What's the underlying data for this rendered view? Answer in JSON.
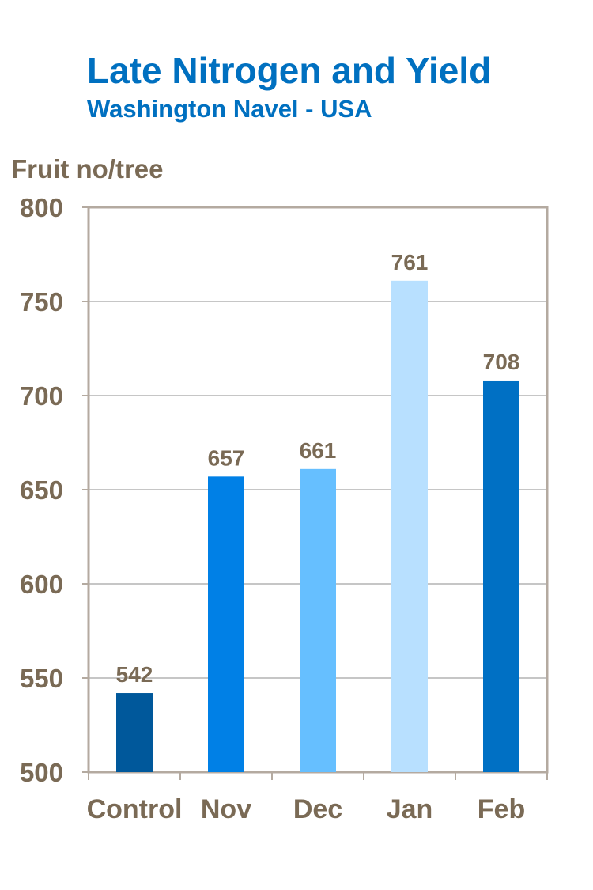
{
  "chart_data": {
    "type": "bar",
    "title": "Late Nitrogen and Yield",
    "subtitle": "Washington Navel - USA",
    "ylabel": "Fruit no/tree",
    "xlabel": "",
    "categories": [
      "Control",
      "Nov",
      "Dec",
      "Jan",
      "Feb"
    ],
    "values": [
      542,
      657,
      661,
      761,
      708
    ],
    "data_labels": [
      "542",
      "657",
      "661",
      "761",
      "708"
    ],
    "bar_colors": [
      "#00589b",
      "#0080e6",
      "#66bfff",
      "#b8e0ff",
      "#0070c4"
    ],
    "ylim": [
      500,
      800
    ],
    "yticks": [
      "500",
      "550",
      "600",
      "650",
      "700",
      "750",
      "800"
    ],
    "grid": true,
    "legend": "none"
  },
  "colors": {
    "title": "#0070c0",
    "axis_text": "#7a6a55",
    "frame": "#b4aaa0",
    "grid": "#8c8c8c"
  }
}
